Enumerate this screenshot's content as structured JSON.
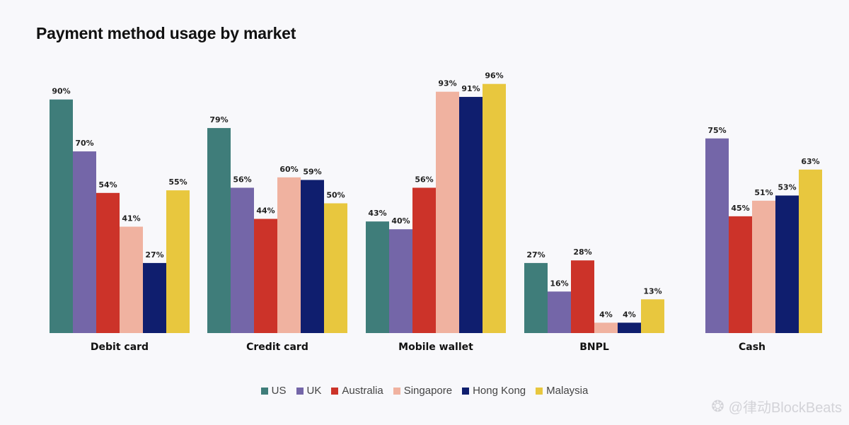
{
  "chart_data": {
    "type": "bar",
    "title": "Payment method usage by market",
    "xlabel": "",
    "ylabel": "",
    "ylim": [
      0,
      100
    ],
    "grid": false,
    "legend_position": "bottom-center",
    "categories": [
      "Debit card",
      "Credit card",
      "Mobile wallet",
      "BNPL",
      "Cash"
    ],
    "series": [
      {
        "name": "US",
        "color": "#3f7d7a",
        "values": [
          90,
          79,
          43,
          27,
          null
        ],
        "labels": [
          "90%",
          "79%",
          "43%",
          "27%",
          ""
        ]
      },
      {
        "name": "UK",
        "color": "#7466a8",
        "values": [
          70,
          56,
          40,
          16,
          75
        ],
        "labels": [
          "70%",
          "56%",
          "40%",
          "16%",
          "75%"
        ]
      },
      {
        "name": "Australia",
        "color": "#cc3329",
        "values": [
          54,
          44,
          56,
          28,
          45
        ],
        "labels": [
          "54%",
          "44%",
          "56%",
          "28%",
          "45%"
        ]
      },
      {
        "name": "Singapore",
        "color": "#f0b2a0",
        "values": [
          41,
          60,
          93,
          4,
          51
        ],
        "labels": [
          "41%",
          "60%",
          "93%",
          "4%",
          "51%"
        ]
      },
      {
        "name": "Hong Kong",
        "color": "#0f1e6e",
        "values": [
          27,
          59,
          91,
          4,
          53
        ],
        "labels": [
          "27%",
          "59%",
          "91%",
          "4%",
          "53%"
        ]
      },
      {
        "name": "Malaysia",
        "color": "#e8c73e",
        "values": [
          55,
          50,
          96,
          13,
          63
        ],
        "labels": [
          "55%",
          "50%",
          "96%",
          "13%",
          "63%"
        ]
      }
    ]
  },
  "watermark": {
    "icon": "blockbeats-logo-icon",
    "text": "@律动BlockBeats"
  }
}
